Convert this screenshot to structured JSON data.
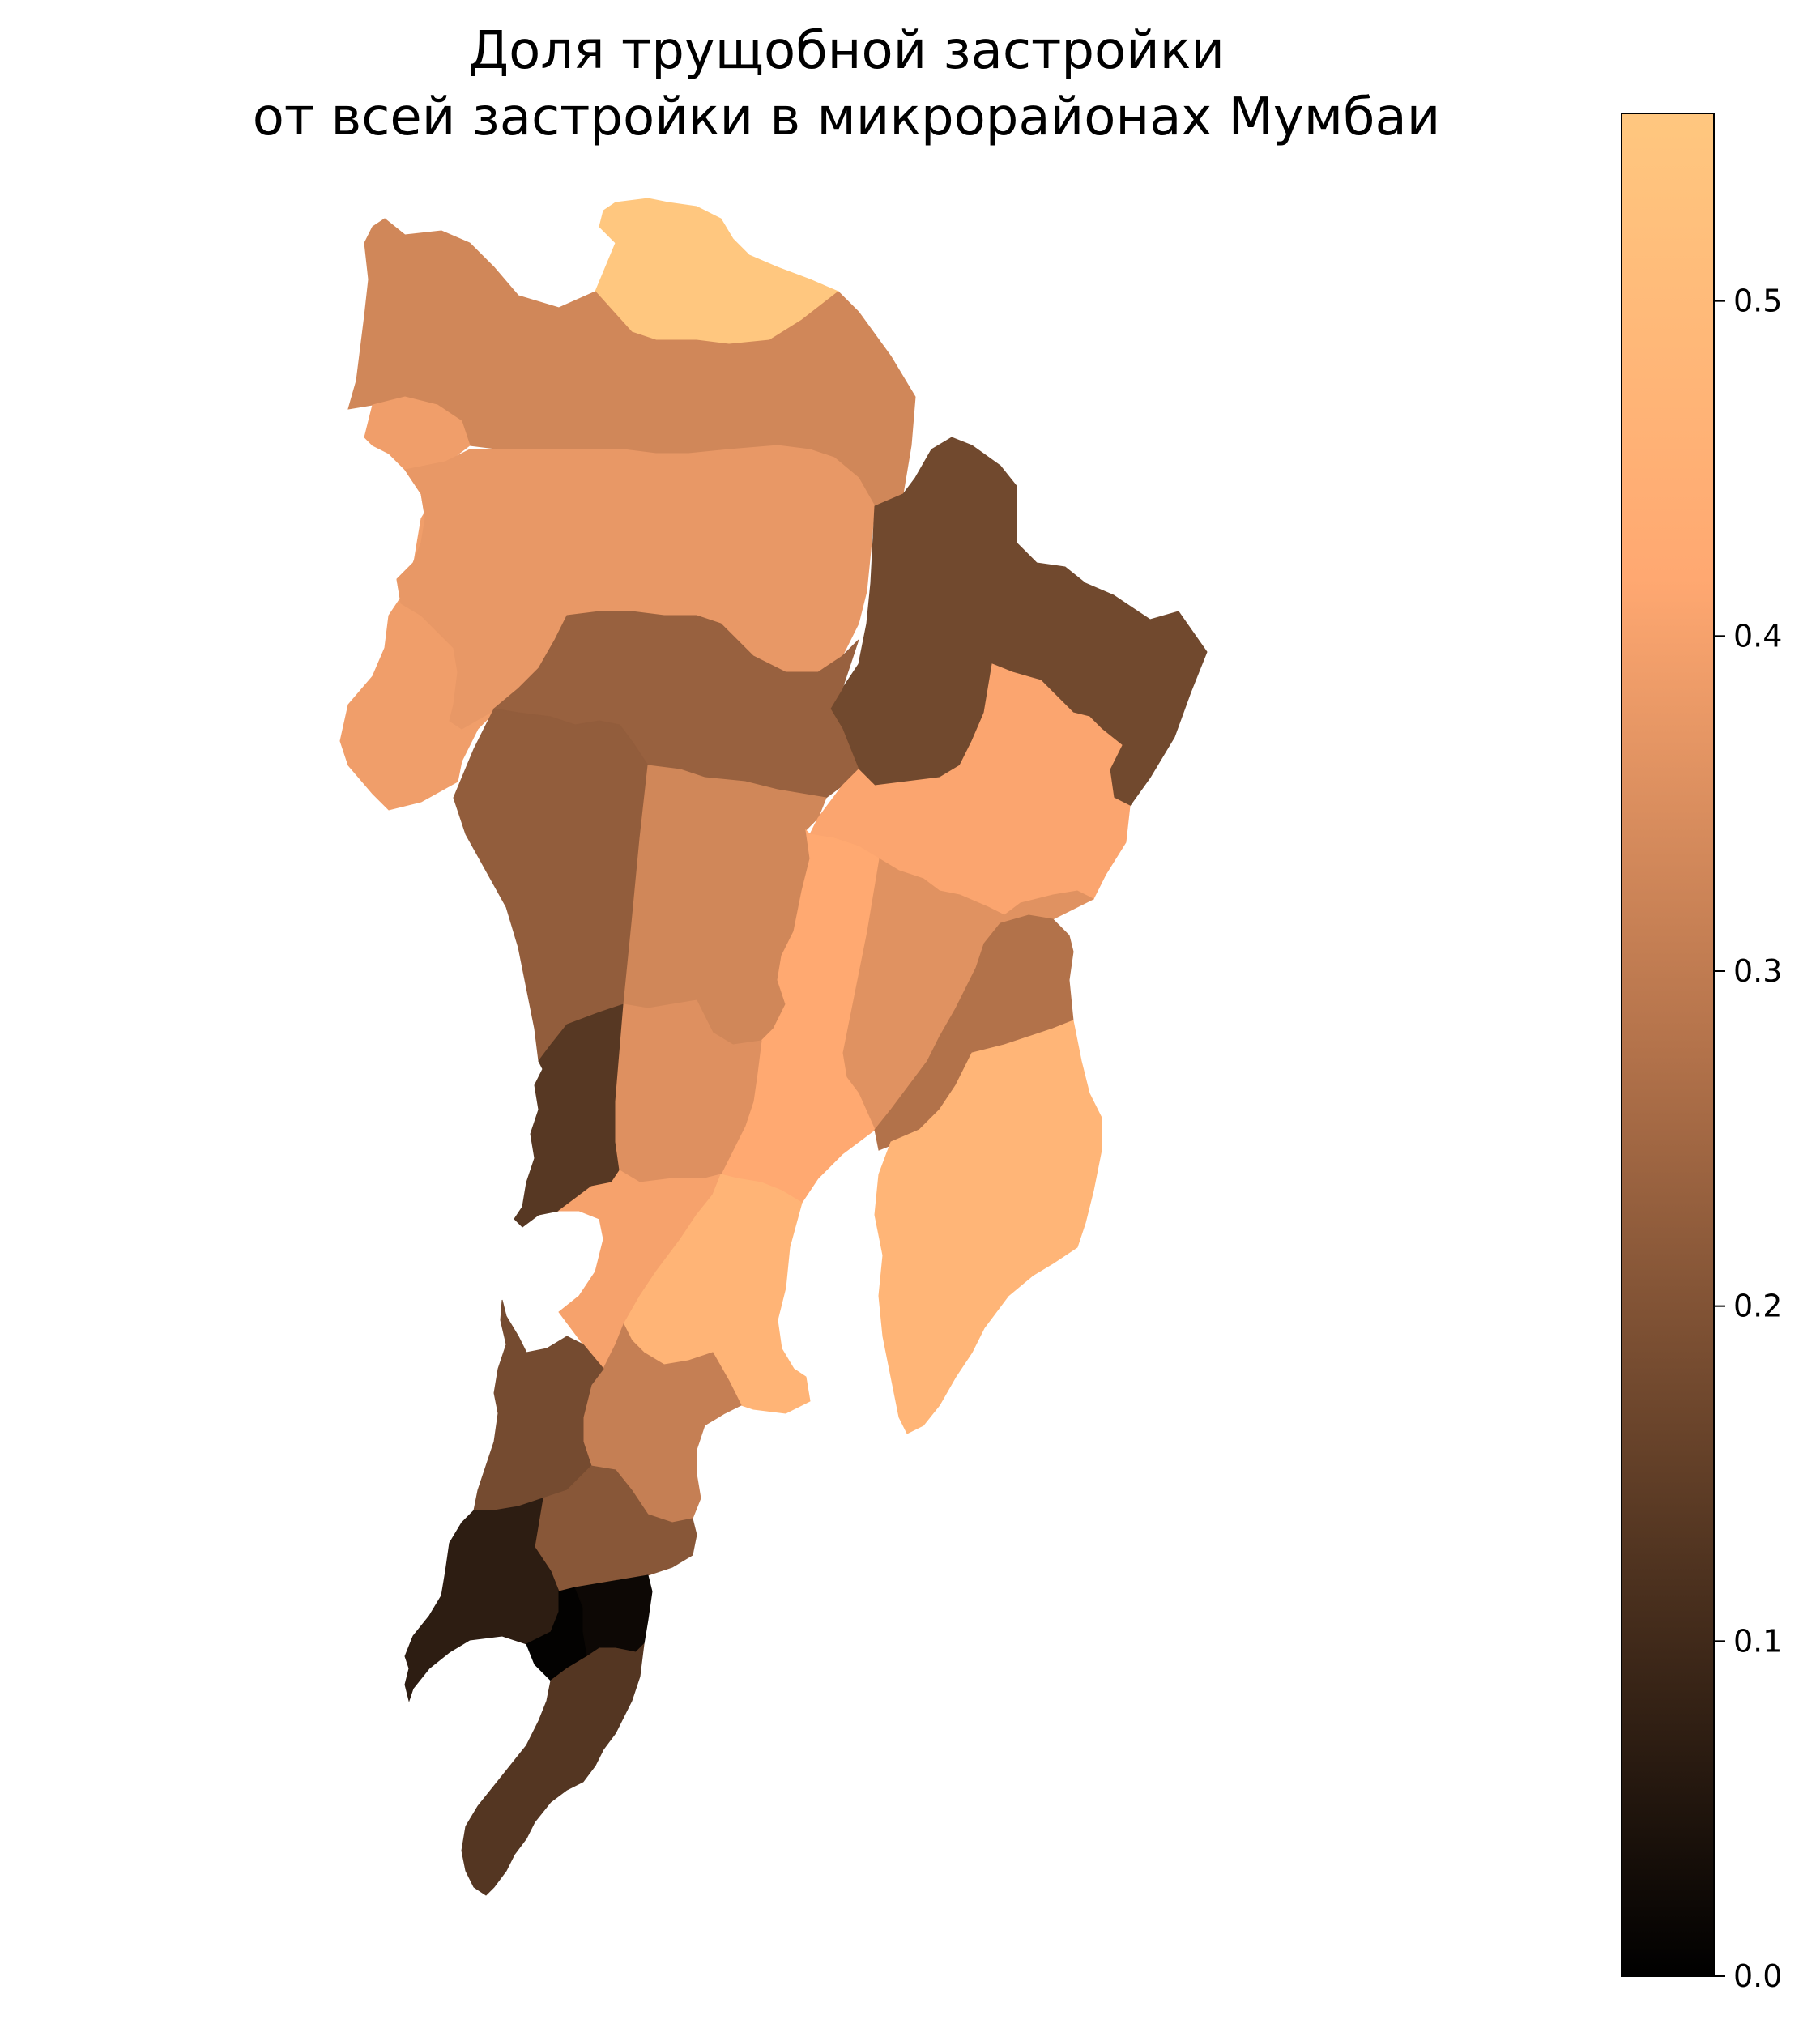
{
  "title": {
    "line1": "Доля трущобной застройки",
    "line2": "от всей застройки в микрорайонах Мумбаи"
  },
  "colormap": {
    "name": "copper",
    "stops": [
      "#000000",
      "#5a3a24",
      "#b4734b",
      "#ffa871",
      "#ffc77f"
    ],
    "min": 0.0,
    "max": 0.556
  },
  "colorbar": {
    "ticks": [
      0.0,
      0.1,
      0.2,
      0.3,
      0.4,
      0.5
    ],
    "tick_labels": [
      "0.0",
      "0.1",
      "0.2",
      "0.3",
      "0.4",
      "0.5"
    ]
  },
  "regions": [
    {
      "id": "north-top",
      "value": 0.555
    },
    {
      "id": "north-band",
      "value": 0.33
    },
    {
      "id": "west-coast",
      "value": 0.39
    },
    {
      "id": "north-mid-band",
      "value": 0.375
    },
    {
      "id": "northeast",
      "value": 0.175
    },
    {
      "id": "central-north",
      "value": 0.235
    },
    {
      "id": "west-mid",
      "value": 0.225
    },
    {
      "id": "central",
      "value": 0.33
    },
    {
      "id": "east-mid",
      "value": 0.41
    },
    {
      "id": "east-lower",
      "value": 0.36
    },
    {
      "id": "central-strip",
      "value": 0.42
    },
    {
      "id": "west-lower",
      "value": 0.135
    },
    {
      "id": "central-lower",
      "value": 0.355
    },
    {
      "id": "east-south-mid",
      "value": 0.275
    },
    {
      "id": "east-south",
      "value": 0.475
    },
    {
      "id": "south-west-1",
      "value": 0.4
    },
    {
      "id": "south-central",
      "value": 0.47
    },
    {
      "id": "south-mid",
      "value": 0.31
    },
    {
      "id": "south-west-2",
      "value": 0.18
    },
    {
      "id": "south-inner",
      "value": 0.21
    },
    {
      "id": "south-1",
      "value": 0.07
    },
    {
      "id": "south-2",
      "value": 0.005
    },
    {
      "id": "south-3",
      "value": 0.02
    },
    {
      "id": "south-tip",
      "value": 0.13
    }
  ]
}
